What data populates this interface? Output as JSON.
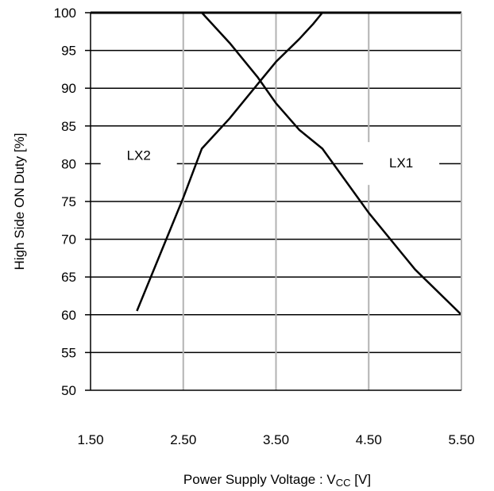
{
  "chart_data": {
    "type": "line",
    "title": "",
    "xlabel": "Power Supply Voltage : V",
    "xlabel_sub": "CC",
    "xlabel_unit": " [V]",
    "ylabel": "High Side ON Duty [%]",
    "xlim": [
      1.5,
      5.5
    ],
    "ylim": [
      50,
      100
    ],
    "x_ticks": [
      "1.50",
      "2.50",
      "3.50",
      "4.50",
      "5.50"
    ],
    "y_ticks": [
      "50",
      "55",
      "60",
      "65",
      "70",
      "75",
      "80",
      "85",
      "90",
      "95",
      "100"
    ],
    "grid": true,
    "series": [
      {
        "name": "LX1",
        "color": "#000000",
        "x": [
          2.7,
          3.0,
          3.3,
          3.5,
          3.75,
          4.0,
          4.5,
          5.0,
          5.5
        ],
        "y": [
          100,
          96,
          91.5,
          88,
          84.5,
          82,
          73.5,
          66,
          60
        ]
      },
      {
        "name": "LX2",
        "color": "#000000",
        "x": [
          2.0,
          2.25,
          2.5,
          2.7,
          3.0,
          3.3,
          3.5,
          3.75,
          3.9,
          4.0
        ],
        "y": [
          60.5,
          68,
          75.5,
          82,
          86,
          90.5,
          93.5,
          96.5,
          98.5,
          100
        ]
      }
    ]
  }
}
